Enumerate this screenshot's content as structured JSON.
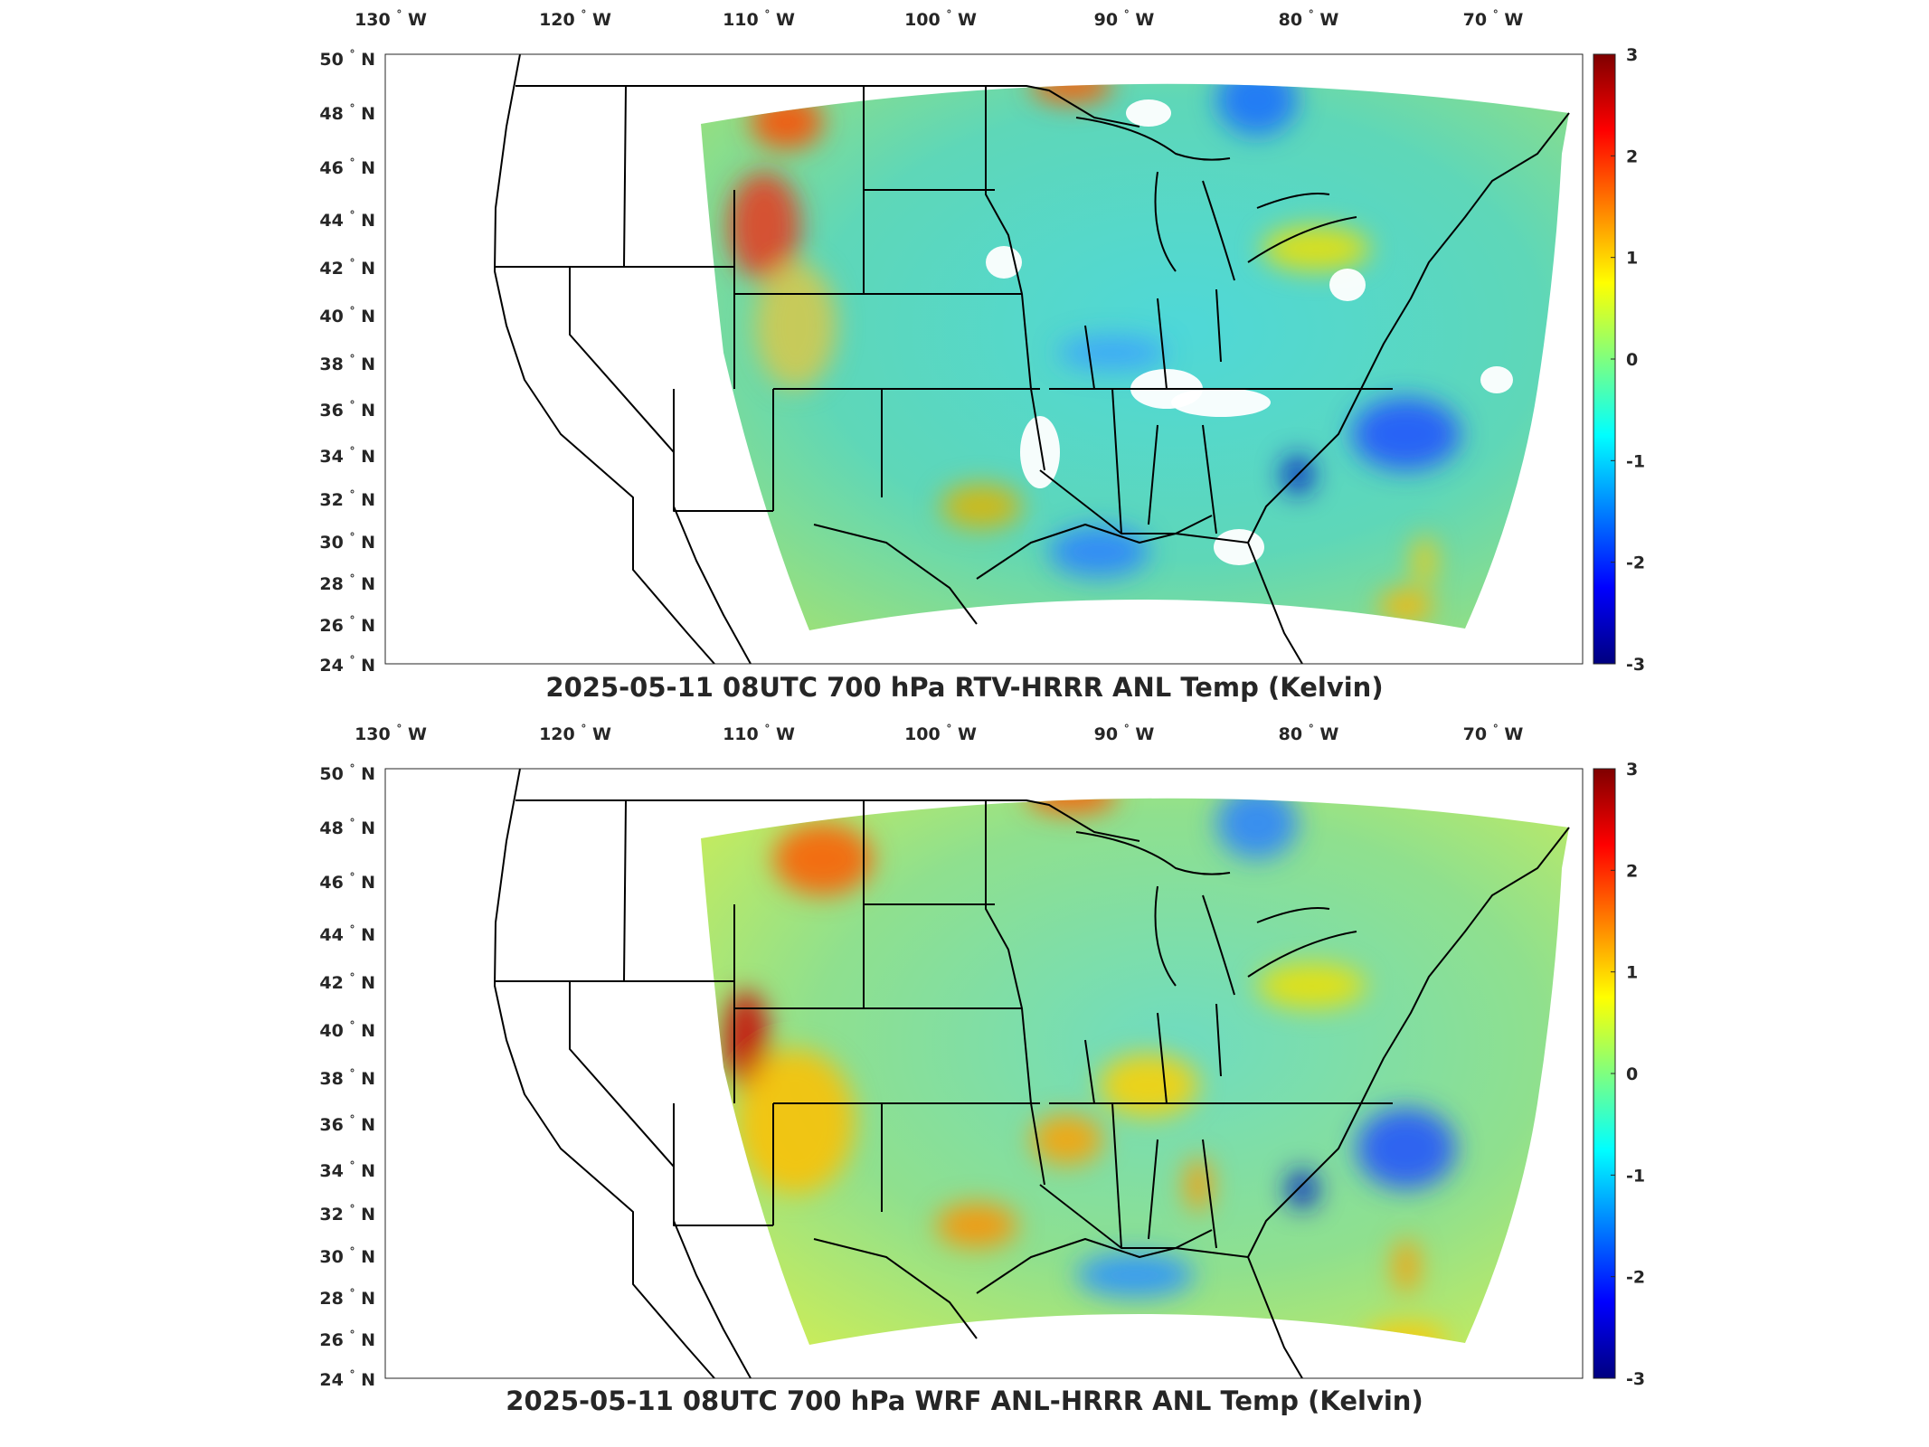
{
  "panels": [
    {
      "id": "top",
      "title": "2025-05-11 08UTC 700 hPa RTV-HRRR ANL Temp (Kelvin)",
      "variant": "rtv"
    },
    {
      "id": "bottom",
      "title": "2025-05-11 08UTC 700 hPa WRF ANL-HRRR ANL Temp (Kelvin)",
      "variant": "wrf"
    }
  ],
  "map": {
    "lon_ticks": [
      "130",
      "120",
      "110",
      "100",
      "90",
      "80",
      "70"
    ],
    "lon_hemi": "W",
    "lat_ticks": [
      "50",
      "48",
      "46",
      "44",
      "42",
      "40",
      "38",
      "36",
      "34",
      "32",
      "30",
      "28",
      "26",
      "24"
    ],
    "lat_hemi": "N",
    "degree_symbol": "°"
  },
  "colorbar": {
    "ticks": [
      "3",
      "2",
      "1",
      "0",
      "-1",
      "-2",
      "-3"
    ],
    "colormap": "jet",
    "colors": [
      "#00007f",
      "#0000ff",
      "#007fff",
      "#00ffff",
      "#7fff7f",
      "#ffff00",
      "#ff7f00",
      "#ff0000",
      "#7f0000"
    ]
  }
}
